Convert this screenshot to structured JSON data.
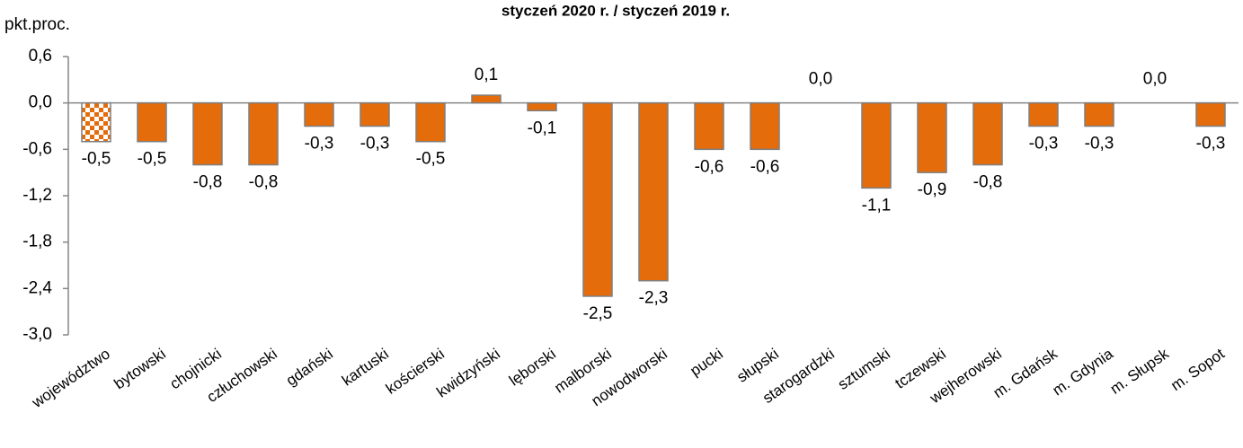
{
  "chart_data": {
    "type": "bar",
    "title": "styczeń 2020 r. / styczeń 2019 r.",
    "y_label": "pkt.proc.",
    "categories": [
      "województwo",
      "bytowski",
      "chojnicki",
      "człuchowski",
      "gdański",
      "kartuski",
      "kościerski",
      "kwidzyński",
      "lęborski",
      "malborski",
      "nowodworski",
      "pucki",
      "słupski",
      "starogardzki",
      "sztumski",
      "tczewski",
      "wejherowski",
      "m. Gdańsk",
      "m. Gdynia",
      "m. Słupsk",
      "m. Sopot"
    ],
    "values": [
      -0.5,
      -0.5,
      -0.8,
      -0.8,
      -0.3,
      -0.3,
      -0.5,
      0.1,
      -0.1,
      -2.5,
      -2.3,
      -0.6,
      -0.6,
      0.0,
      -1.1,
      -0.9,
      -0.8,
      -0.3,
      -0.3,
      0.0,
      -0.3
    ],
    "value_labels": [
      "-0,5",
      "-0,5",
      "-0,8",
      "-0,8",
      "-0,3",
      "-0,3",
      "-0,5",
      "0,1",
      "-0,1",
      "-2,5",
      "-2,3",
      "-0,6",
      "-0,6",
      "0,0",
      "-1,1",
      "-0,9",
      "-0,8",
      "-0,3",
      "-0,3",
      "0,0",
      "-0,3"
    ],
    "color": "#e46c0a",
    "highlight": {
      "index": 0,
      "pattern": "checker",
      "color": "#e46c0a"
    },
    "ylim": [
      -3.0,
      0.6
    ],
    "yticks": [
      {
        "value": 0.6,
        "label": "0,6"
      },
      {
        "value": 0.0,
        "label": "0,0"
      },
      {
        "value": -0.6,
        "label": "-0,6"
      },
      {
        "value": -1.2,
        "label": "-1,2"
      },
      {
        "value": -1.8,
        "label": "-1,8"
      },
      {
        "value": -2.4,
        "label": "-2,4"
      },
      {
        "value": -3.0,
        "label": "-3,0"
      }
    ],
    "grid": false
  }
}
